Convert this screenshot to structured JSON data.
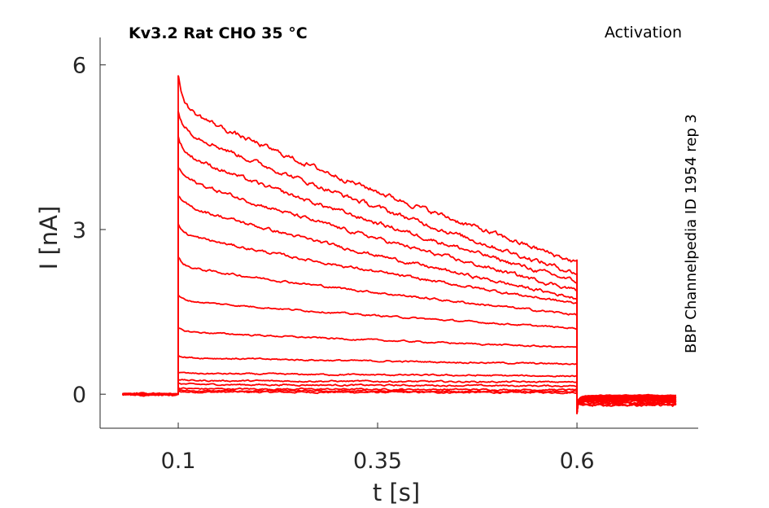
{
  "chart_data": {
    "type": "line",
    "title": "Kv3.2  Rat  CHO  35 °C",
    "subtitle": "Activation",
    "side_annotation": "BBP Channelpedia ID 1954 rep 3",
    "xlabel": "t [s]",
    "ylabel": "I [nA]",
    "xlim": [
      0.002,
      0.752
    ],
    "ylim": [
      -0.62,
      6.5
    ],
    "xticks": [
      0.1,
      0.35,
      0.6
    ],
    "xtick_labels": [
      "0.1",
      "0.35",
      "0.6"
    ],
    "yticks": [
      0,
      3,
      6
    ],
    "ytick_labels": [
      "0",
      "3",
      "6"
    ],
    "grid": false,
    "legend": "none",
    "color": "#ff0000",
    "pulse_start": 0.1,
    "pulse_end": 0.6,
    "x_range": [
      0.03,
      0.725
    ],
    "series": [
      {
        "peak": 0.05,
        "start": 0.04,
        "end": 0.03,
        "tail": -0.02
      },
      {
        "peak": 0.08,
        "start": 0.06,
        "end": 0.05,
        "tail": -0.03
      },
      {
        "peak": 0.12,
        "start": 0.1,
        "end": 0.08,
        "tail": -0.04
      },
      {
        "peak": 0.2,
        "start": 0.18,
        "end": 0.15,
        "tail": -0.05
      },
      {
        "peak": 0.28,
        "start": 0.25,
        "end": 0.22,
        "tail": -0.06
      },
      {
        "peak": 0.4,
        "start": 0.38,
        "end": 0.33,
        "tail": -0.07
      },
      {
        "peak": 0.72,
        "start": 0.67,
        "end": 0.55,
        "tail": -0.08
      },
      {
        "peak": 1.2,
        "start": 1.15,
        "end": 0.85,
        "tail": -0.09
      },
      {
        "peak": 1.8,
        "start": 1.72,
        "end": 1.2,
        "tail": -0.1
      },
      {
        "peak": 2.5,
        "start": 2.35,
        "end": 1.45,
        "tail": -0.11
      },
      {
        "peak": 3.1,
        "start": 2.95,
        "end": 1.65,
        "tail": -0.12
      },
      {
        "peak": 3.6,
        "start": 3.5,
        "end": 1.75,
        "tail": -0.13
      },
      {
        "peak": 4.15,
        "start": 4.0,
        "end": 1.9,
        "tail": -0.15
      },
      {
        "peak": 4.7,
        "start": 4.45,
        "end": 2.05,
        "tail": -0.17
      },
      {
        "peak": 5.15,
        "start": 4.9,
        "end": 2.2,
        "tail": -0.19
      },
      {
        "peak": 5.8,
        "start": 5.3,
        "end": 2.4,
        "tail": -0.2
      }
    ]
  }
}
